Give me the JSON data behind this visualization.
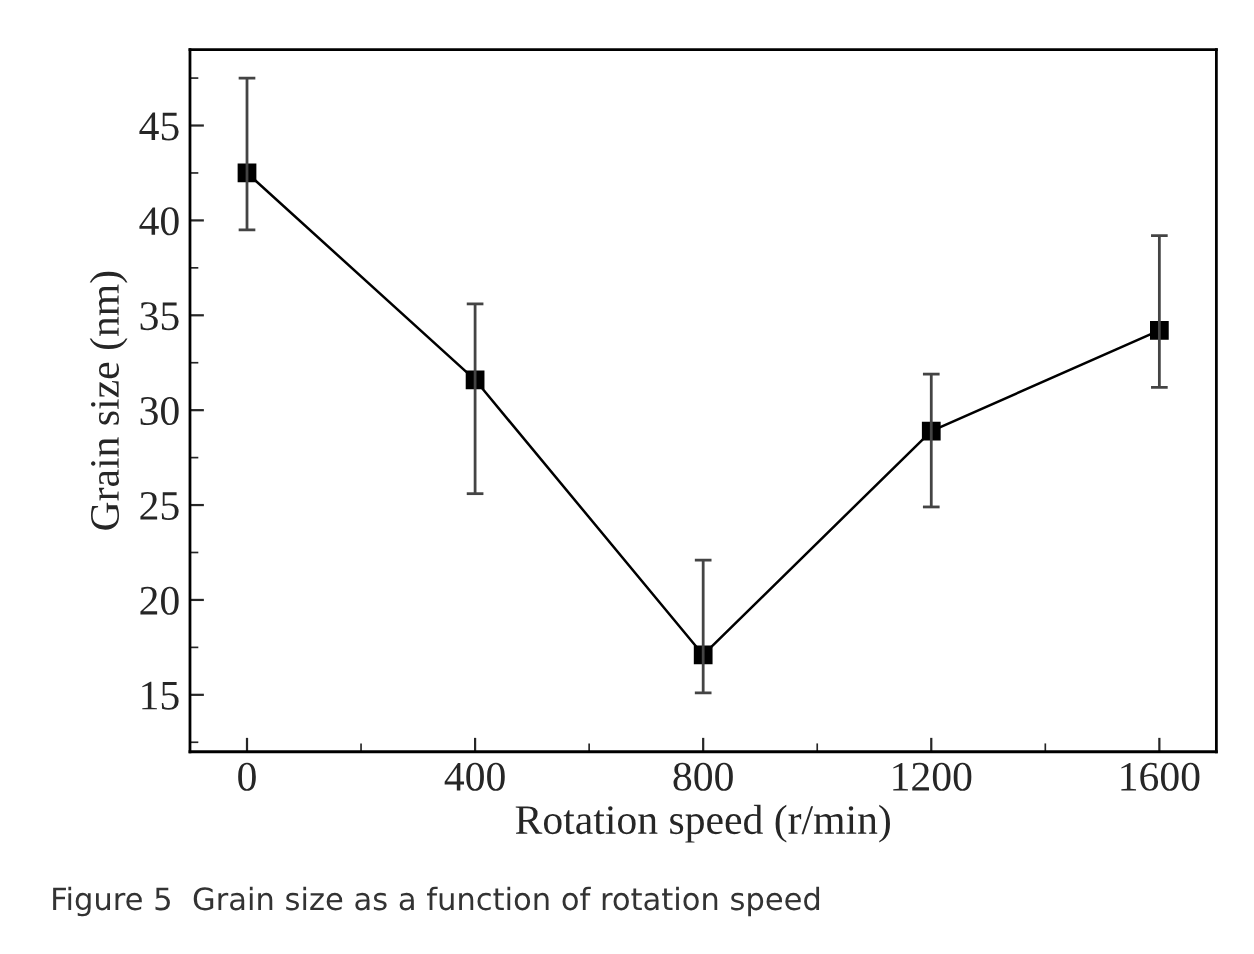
{
  "chart_data": {
    "type": "line",
    "xlabel": "Rotation speed (r/min)",
    "ylabel": "Grain size (nm)",
    "annotations": [
      "Figure 5  Grain size as a function of rotation speed"
    ],
    "x": [
      0,
      400,
      800,
      1200,
      1600
    ],
    "series": [
      {
        "color": "#000000",
        "values": [
          42.5,
          31.6,
          17.1,
          28.9,
          34.2
        ],
        "errors": [
          [
            39.5,
            47.5
          ],
          [
            25.6,
            35.6
          ],
          [
            15.1,
            22.1
          ],
          [
            24.9,
            31.9
          ],
          [
            31.2,
            39.2
          ]
        ]
      }
    ],
    "xlim": [
      -100,
      1700
    ],
    "xticks": [
      0,
      400,
      800,
      1200,
      1600
    ],
    "ylim": [
      12,
      49
    ],
    "yticks": [
      15,
      20,
      25,
      30,
      35,
      40,
      45
    ],
    "marker": "square",
    "line_style": "solid",
    "grid": false,
    "legend": false
  }
}
